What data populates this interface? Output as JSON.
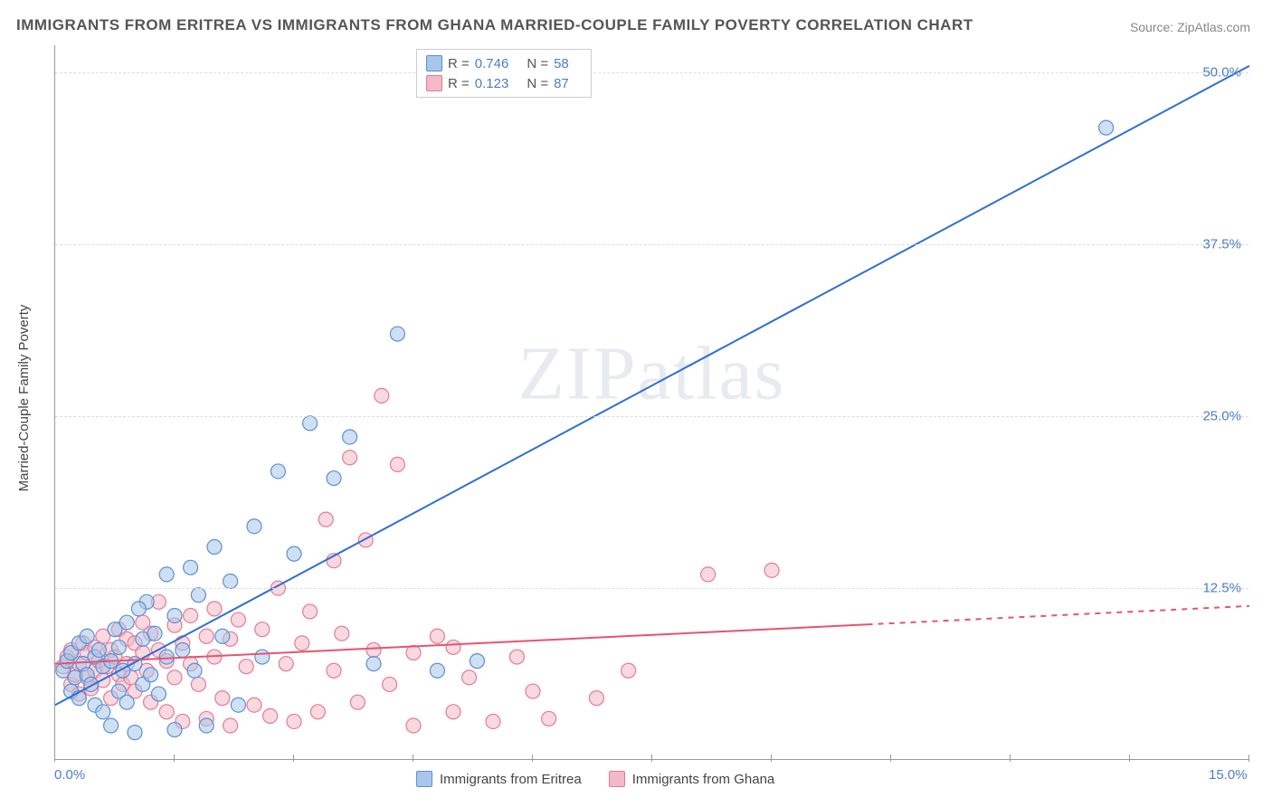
{
  "title": "IMMIGRANTS FROM ERITREA VS IMMIGRANTS FROM GHANA MARRIED-COUPLE FAMILY POVERTY CORRELATION CHART",
  "source": "Source: ZipAtlas.com",
  "watermark": "ZIPatlas",
  "y_axis_label": "Married-Couple Family Poverty",
  "chart": {
    "type": "scatter-regression",
    "background_color": "#ffffff",
    "grid_color": "#dddddd",
    "axis_color": "#999999",
    "xlim": [
      0,
      15
    ],
    "ylim": [
      0,
      52
    ],
    "x_ticks": [
      0,
      1.5,
      3,
      4.5,
      6,
      7.5,
      9,
      10.5,
      12,
      13.5,
      15
    ],
    "x_tick_labels": {
      "0": "0.0%",
      "15": "15.0%"
    },
    "y_ticks": [
      12.5,
      25.0,
      37.5,
      50.0
    ],
    "y_tick_labels": [
      "12.5%",
      "25.0%",
      "37.5%",
      "50.0%"
    ],
    "marker_radius": 8,
    "marker_opacity": 0.55,
    "series": [
      {
        "name": "Immigrants from Eritrea",
        "color_fill": "#a8c6ea",
        "color_stroke": "#5b8fd6",
        "r_value": "0.746",
        "n_value": "58",
        "regression": {
          "x1": 0,
          "y1": 4.0,
          "x2": 15,
          "y2": 50.5,
          "solid_to_x": 15,
          "line_color": "#2f6fd0",
          "line_width": 2
        },
        "points": [
          [
            0.1,
            6.5
          ],
          [
            0.15,
            7.2
          ],
          [
            0.2,
            5.0
          ],
          [
            0.2,
            7.8
          ],
          [
            0.25,
            6.0
          ],
          [
            0.3,
            8.5
          ],
          [
            0.3,
            4.5
          ],
          [
            0.35,
            7.0
          ],
          [
            0.4,
            6.2
          ],
          [
            0.4,
            9.0
          ],
          [
            0.45,
            5.5
          ],
          [
            0.5,
            7.5
          ],
          [
            0.5,
            4.0
          ],
          [
            0.55,
            8.0
          ],
          [
            0.6,
            6.8
          ],
          [
            0.6,
            3.5
          ],
          [
            0.7,
            7.2
          ],
          [
            0.7,
            2.5
          ],
          [
            0.75,
            9.5
          ],
          [
            0.8,
            5.0
          ],
          [
            0.8,
            8.2
          ],
          [
            0.85,
            6.5
          ],
          [
            0.9,
            4.2
          ],
          [
            0.9,
            10.0
          ],
          [
            1.0,
            7.0
          ],
          [
            1.0,
            2.0
          ],
          [
            1.1,
            8.8
          ],
          [
            1.1,
            5.5
          ],
          [
            1.15,
            11.5
          ],
          [
            1.2,
            6.2
          ],
          [
            1.25,
            9.2
          ],
          [
            1.3,
            4.8
          ],
          [
            1.4,
            13.5
          ],
          [
            1.4,
            7.5
          ],
          [
            1.5,
            10.5
          ],
          [
            1.5,
            2.2
          ],
          [
            1.6,
            8.0
          ],
          [
            1.7,
            14.0
          ],
          [
            1.75,
            6.5
          ],
          [
            1.8,
            12.0
          ],
          [
            1.9,
            2.5
          ],
          [
            2.0,
            15.5
          ],
          [
            2.1,
            9.0
          ],
          [
            2.2,
            13.0
          ],
          [
            2.3,
            4.0
          ],
          [
            2.5,
            17.0
          ],
          [
            2.6,
            7.5
          ],
          [
            2.8,
            21.0
          ],
          [
            3.0,
            15.0
          ],
          [
            3.2,
            24.5
          ],
          [
            3.5,
            20.5
          ],
          [
            3.7,
            23.5
          ],
          [
            4.0,
            7.0
          ],
          [
            4.3,
            31.0
          ],
          [
            4.8,
            6.5
          ],
          [
            5.3,
            7.2
          ],
          [
            13.2,
            46.0
          ],
          [
            1.05,
            11.0
          ]
        ]
      },
      {
        "name": "Immigrants from Ghana",
        "color_fill": "#f3b9c6",
        "color_stroke": "#e67a95",
        "r_value": "0.123",
        "n_value": "87",
        "regression": {
          "x1": 0,
          "y1": 7.0,
          "x2": 15,
          "y2": 11.2,
          "solid_to_x": 10.2,
          "line_color": "#e6546f",
          "line_width": 2
        },
        "points": [
          [
            0.1,
            6.8
          ],
          [
            0.15,
            7.5
          ],
          [
            0.2,
            5.5
          ],
          [
            0.2,
            8.0
          ],
          [
            0.25,
            6.2
          ],
          [
            0.3,
            7.0
          ],
          [
            0.3,
            4.8
          ],
          [
            0.35,
            8.5
          ],
          [
            0.4,
            6.0
          ],
          [
            0.4,
            7.8
          ],
          [
            0.45,
            5.2
          ],
          [
            0.5,
            8.2
          ],
          [
            0.5,
            6.5
          ],
          [
            0.55,
            7.2
          ],
          [
            0.6,
            5.8
          ],
          [
            0.6,
            9.0
          ],
          [
            0.65,
            6.8
          ],
          [
            0.7,
            8.0
          ],
          [
            0.7,
            4.5
          ],
          [
            0.75,
            7.5
          ],
          [
            0.8,
            6.2
          ],
          [
            0.8,
            9.5
          ],
          [
            0.85,
            5.5
          ],
          [
            0.9,
            8.8
          ],
          [
            0.9,
            7.0
          ],
          [
            0.95,
            6.0
          ],
          [
            1.0,
            8.5
          ],
          [
            1.0,
            5.0
          ],
          [
            1.1,
            7.8
          ],
          [
            1.1,
            10.0
          ],
          [
            1.15,
            6.5
          ],
          [
            1.2,
            9.2
          ],
          [
            1.2,
            4.2
          ],
          [
            1.3,
            8.0
          ],
          [
            1.3,
            11.5
          ],
          [
            1.4,
            7.2
          ],
          [
            1.4,
            3.5
          ],
          [
            1.5,
            9.8
          ],
          [
            1.5,
            6.0
          ],
          [
            1.6,
            8.5
          ],
          [
            1.6,
            2.8
          ],
          [
            1.7,
            10.5
          ],
          [
            1.7,
            7.0
          ],
          [
            1.8,
            5.5
          ],
          [
            1.9,
            9.0
          ],
          [
            1.9,
            3.0
          ],
          [
            2.0,
            11.0
          ],
          [
            2.0,
            7.5
          ],
          [
            2.1,
            4.5
          ],
          [
            2.2,
            8.8
          ],
          [
            2.2,
            2.5
          ],
          [
            2.3,
            10.2
          ],
          [
            2.4,
            6.8
          ],
          [
            2.5,
            4.0
          ],
          [
            2.6,
            9.5
          ],
          [
            2.7,
            3.2
          ],
          [
            2.8,
            12.5
          ],
          [
            2.9,
            7.0
          ],
          [
            3.0,
            2.8
          ],
          [
            3.1,
            8.5
          ],
          [
            3.2,
            10.8
          ],
          [
            3.3,
            3.5
          ],
          [
            3.4,
            17.5
          ],
          [
            3.5,
            6.5
          ],
          [
            3.6,
            9.2
          ],
          [
            3.7,
            22.0
          ],
          [
            3.8,
            4.2
          ],
          [
            3.9,
            16.0
          ],
          [
            4.0,
            8.0
          ],
          [
            4.1,
            26.5
          ],
          [
            4.2,
            5.5
          ],
          [
            4.5,
            7.8
          ],
          [
            4.5,
            2.5
          ],
          [
            4.8,
            9.0
          ],
          [
            5.0,
            3.5
          ],
          [
            5.0,
            8.2
          ],
          [
            5.2,
            6.0
          ],
          [
            5.5,
            2.8
          ],
          [
            5.8,
            7.5
          ],
          [
            6.0,
            5.0
          ],
          [
            6.2,
            3.0
          ],
          [
            6.8,
            4.5
          ],
          [
            7.2,
            6.5
          ],
          [
            8.2,
            13.5
          ],
          [
            9.0,
            13.8
          ],
          [
            4.3,
            21.5
          ],
          [
            3.5,
            14.5
          ]
        ]
      }
    ]
  },
  "legend_top": {
    "r_label": "R =",
    "n_label": "N ="
  },
  "legend_bottom": {
    "series1_label": "Immigrants from Eritrea",
    "series2_label": "Immigrants from Ghana"
  }
}
